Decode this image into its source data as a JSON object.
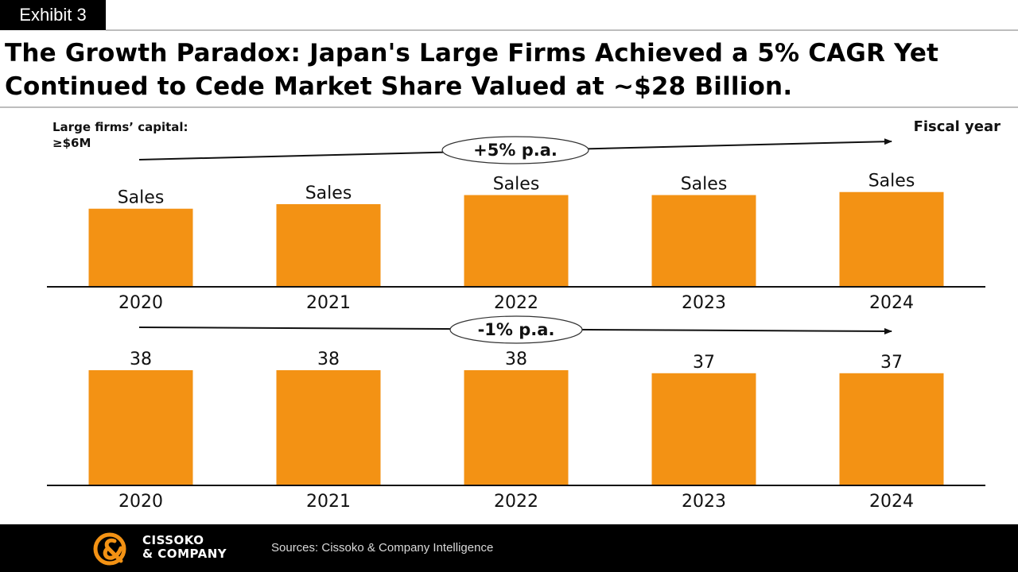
{
  "exhibit_label": "Exhibit 3",
  "title": "The Growth Paradox: Japan's Large Firms Achieved a 5% CAGR Yet Continued to Cede Market Share Valued at ~$28 Billion.",
  "capital_note": {
    "line1": "Large firms’ capital:",
    "line2": "≥$6M"
  },
  "fiscal_year_label": "Fiscal year",
  "colors": {
    "bar": "#F39214",
    "axis": "#111111",
    "background": "#FFFFFF"
  },
  "chart_data": [
    {
      "type": "bar",
      "name": "sales",
      "categories": [
        "2020",
        "2021",
        "2022",
        "2023",
        "2024"
      ],
      "values": [
        102,
        108,
        120,
        120,
        124
      ],
      "bar_labels": [
        "Sales",
        "Sales",
        "Sales",
        "Sales",
        "Sales"
      ],
      "growth_label": "+5% p.a.",
      "ylim": [
        0,
        130
      ],
      "title": "",
      "xlabel": "",
      "ylabel": ""
    },
    {
      "type": "bar",
      "name": "share",
      "categories": [
        "2020",
        "2021",
        "2022",
        "2023",
        "2024"
      ],
      "values": [
        38,
        38,
        38,
        37,
        37
      ],
      "bar_labels": [
        "38",
        "38",
        "38",
        "37",
        "37"
      ],
      "growth_label": "-1% p.a.",
      "ylim": [
        0,
        38
      ],
      "title": "",
      "xlabel": "",
      "ylabel": ""
    }
  ],
  "footer": {
    "logo_line1": "CISSOKO",
    "logo_line2": "& COMPANY",
    "sources": "Sources: Cissoko & Company Intelligence"
  }
}
